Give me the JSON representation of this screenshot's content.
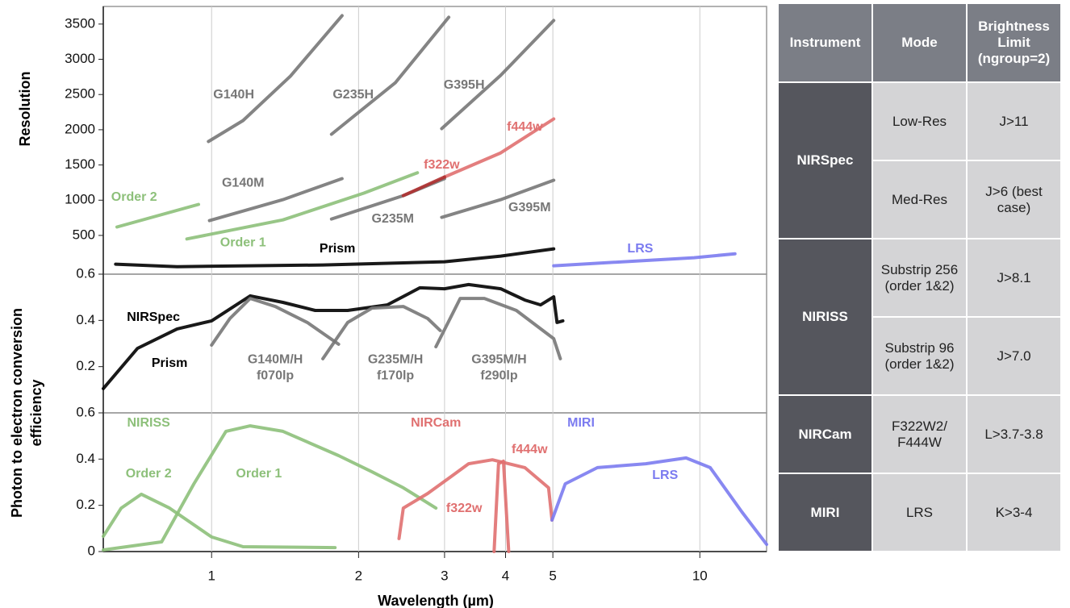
{
  "chart_data": [
    {
      "type": "line",
      "ylabel": "Resolution",
      "ylim": [
        -50,
        3750
      ],
      "yticks": [
        500,
        1000,
        1500,
        2000,
        2500,
        3000,
        3500
      ],
      "series": [
        {
          "color": "#8dc07a",
          "x": [
            0.64,
            0.94
          ],
          "values": [
            620,
            940
          ]
        },
        {
          "color": "#8dc07a",
          "x": [
            0.89,
            1.4,
            2.05,
            2.64
          ],
          "values": [
            450,
            720,
            1100,
            1390
          ]
        },
        {
          "color": "#777777",
          "x": [
            0.99,
            1.4,
            1.85
          ],
          "values": [
            710,
            1008,
            1306
          ]
        },
        {
          "color": "#777777",
          "x": [
            1.76,
            2.47,
            3.0
          ],
          "values": [
            733,
            1065,
            1306
          ]
        },
        {
          "color": "#777777",
          "x": [
            2.96,
            3.91,
            5.02
          ],
          "values": [
            756,
            1008,
            1283
          ]
        },
        {
          "color": "#777777",
          "x": [
            0.985,
            1.16,
            1.45,
            1.85
          ],
          "values": [
            1833,
            2130,
            2761,
            3620
          ]
        },
        {
          "color": "#777777",
          "x": [
            1.76,
            2.38,
            3.06
          ],
          "values": [
            1936,
            2669,
            3597
          ]
        },
        {
          "color": "#777777",
          "x": [
            2.96,
            3.91,
            5.02
          ],
          "values": [
            2016,
            2772,
            3551
          ]
        },
        {
          "color": "#e07070",
          "x": [
            3.0,
            3.91,
            5.02
          ],
          "values": [
            1329,
            1672,
            2153
          ]
        },
        {
          "color": "#b03030",
          "x": [
            2.47,
            3.0
          ],
          "values": [
            1065,
            1329
          ]
        },
        {
          "color": "#000000",
          "x": [
            0.636,
            0.85,
            1.69,
            3.0,
            3.91,
            5.02
          ],
          "values": [
            92,
            57,
            80,
            126,
            206,
            309
          ]
        },
        {
          "color": "#7b7bf0",
          "x": [
            5.02,
            9.73,
            11.8
          ],
          "values": [
            69,
            183,
            240
          ]
        }
      ],
      "annotations": [
        {
          "text": "G140H",
          "x": 1.11,
          "y": 2491,
          "color": "#777777"
        },
        {
          "text": "G235H",
          "x": 1.95,
          "y": 2491,
          "color": "#777777"
        },
        {
          "text": "G395H",
          "x": 3.29,
          "y": 2628,
          "color": "#777777"
        },
        {
          "text": "f444w",
          "x": 4.38,
          "y": 2033,
          "color": "#e07070"
        },
        {
          "text": "f322w",
          "x": 2.96,
          "y": 1495,
          "color": "#e07070"
        },
        {
          "text": "G140M",
          "x": 1.16,
          "y": 1243,
          "color": "#777777"
        },
        {
          "text": "Order 2",
          "x": 0.694,
          "y": 1037,
          "color": "#8dc07a"
        },
        {
          "text": "G235M",
          "x": 2.35,
          "y": 728,
          "color": "#777777"
        },
        {
          "text": "G395M",
          "x": 4.48,
          "y": 889,
          "color": "#777777"
        },
        {
          "text": "Order 1",
          "x": 1.16,
          "y": 396,
          "color": "#8dc07a"
        },
        {
          "text": "Prism",
          "x": 1.81,
          "y": 305,
          "color": "#000000"
        },
        {
          "text": "LRS",
          "x": 7.55,
          "y": 305,
          "color": "#7b7bf0"
        }
      ]
    },
    {
      "type": "line",
      "ylabel": [
        "Photon to electron conversion",
        "efficiency"
      ],
      "ylim": [
        0,
        0.6
      ],
      "yticks": [
        0.2,
        0.4,
        0.6
      ],
      "series": [
        {
          "color": "#000000",
          "x": [
            0.6,
            0.705,
            0.85,
            1.0,
            1.2,
            1.4,
            1.63,
            1.9,
            2.29,
            2.67,
            3.0,
            3.36,
            3.91,
            4.38,
            4.72,
            5.02,
            5.1,
            5.24
          ],
          "values": [
            0.105,
            0.279,
            0.363,
            0.398,
            0.506,
            0.478,
            0.443,
            0.443,
            0.467,
            0.541,
            0.537,
            0.555,
            0.537,
            0.488,
            0.467,
            0.502,
            0.391,
            0.398
          ]
        },
        {
          "color": "#777777",
          "x": [
            1.0,
            1.09,
            1.2,
            1.35,
            1.57,
            1.82
          ],
          "values": [
            0.293,
            0.408,
            0.495,
            0.46,
            0.391,
            0.297
          ]
        },
        {
          "color": "#777777",
          "x": [
            1.69,
            1.9,
            2.13,
            2.47,
            2.77,
            2.94
          ],
          "values": [
            0.234,
            0.391,
            0.453,
            0.46,
            0.408,
            0.356
          ]
        },
        {
          "color": "#777777",
          "x": [
            2.88,
            3.23,
            3.62,
            4.21,
            5.02,
            5.18
          ],
          "values": [
            0.286,
            0.495,
            0.495,
            0.443,
            0.321,
            0.234
          ]
        }
      ],
      "annotations": [
        {
          "text": "NIRSpec",
          "x": 0.76,
          "y": 0.412,
          "color": "#000000"
        },
        {
          "text": "Prism",
          "x": 0.82,
          "y": 0.213,
          "color": "#000000"
        },
        {
          "text": "G140M/H",
          "x": 1.35,
          "y": 0.23,
          "color": "#777777"
        },
        {
          "text": "f070lp",
          "x": 1.35,
          "y": 0.16,
          "color": "#777777"
        },
        {
          "text": "G235M/H",
          "x": 2.38,
          "y": 0.23,
          "color": "#777777"
        },
        {
          "text": "f170lp",
          "x": 2.38,
          "y": 0.16,
          "color": "#777777"
        },
        {
          "text": "G395M/H",
          "x": 3.88,
          "y": 0.23,
          "color": "#777777"
        },
        {
          "text": "f290lp",
          "x": 3.88,
          "y": 0.16,
          "color": "#777777"
        }
      ]
    },
    {
      "type": "line",
      "xlabel": "Wavelength (µm)",
      "xscale": "log",
      "xlim": [
        0.6,
        13.7
      ],
      "xticks": [
        1,
        2,
        3,
        4,
        5,
        10
      ],
      "grid": true,
      "ylim": [
        0,
        0.6
      ],
      "yticks": [
        0,
        0.2,
        0.4,
        0.6
      ],
      "series": [
        {
          "color": "#8dc07a",
          "x": [
            0.6,
            0.653,
            0.718,
            0.82,
            1.0,
            1.16,
            1.79
          ],
          "values": [
            0.066,
            0.188,
            0.248,
            0.188,
            0.063,
            0.021,
            0.017
          ]
        },
        {
          "color": "#8dc07a",
          "x": [
            0.6,
            0.79,
            0.92,
            1.07,
            1.2,
            1.4,
            1.82,
            2.13,
            2.47,
            2.88
          ],
          "values": [
            0.007,
            0.042,
            0.293,
            0.52,
            0.544,
            0.52,
            0.415,
            0.345,
            0.276,
            0.188
          ]
        },
        {
          "color": "#e07070",
          "x": [
            2.42,
            2.47,
            2.77,
            3.11,
            3.36,
            3.76,
            4.38,
            4.9,
            4.98
          ],
          "values": [
            0.056,
            0.188,
            0.251,
            0.328,
            0.38,
            0.397,
            0.363,
            0.276,
            0.136
          ]
        },
        {
          "color": "#e07070",
          "x": [
            3.79,
            3.87,
            3.96,
            4.06
          ],
          "values": [
            0,
            0.38,
            0.391,
            0
          ]
        },
        {
          "color": "#7b7bf0",
          "x": [
            4.98,
            5.3,
            6.17,
            7.75,
            9.37,
            10.5,
            12.2,
            13.7
          ],
          "values": [
            0.136,
            0.293,
            0.363,
            0.38,
            0.405,
            0.363,
            0.171,
            0.031
          ]
        }
      ],
      "annotations": [
        {
          "text": "NIRISS",
          "x": 0.743,
          "y": 0.555,
          "color": "#8dc07a"
        },
        {
          "text": "NIRCam",
          "x": 2.88,
          "y": 0.555,
          "color": "#e07070"
        },
        {
          "text": "MIRI",
          "x": 5.71,
          "y": 0.555,
          "color": "#7b7bf0"
        },
        {
          "text": "Order 2",
          "x": 0.743,
          "y": 0.335,
          "color": "#8dc07a"
        },
        {
          "text": "Order 1",
          "x": 1.25,
          "y": 0.335,
          "color": "#8dc07a"
        },
        {
          "text": "f444w",
          "x": 4.48,
          "y": 0.44,
          "color": "#e07070"
        },
        {
          "text": "f322w",
          "x": 3.29,
          "y": 0.185,
          "color": "#e07070"
        },
        {
          "text": "LRS",
          "x": 8.49,
          "y": 0.328,
          "color": "#7b7bf0"
        }
      ]
    }
  ],
  "table": {
    "header": [
      "Instrument",
      "Mode",
      "Brightness Limit (ngroup=2)"
    ],
    "rows": [
      {
        "instrument": "NIRSpec",
        "modes": [
          [
            "Low-Res",
            "J>11"
          ],
          [
            "Med-Res",
            "J>6 (best case)"
          ]
        ]
      },
      {
        "instrument": "NIRISS",
        "modes": [
          [
            "Substrip 256 (order 1&2)",
            "J>8.1"
          ],
          [
            "Substrip 96 (order 1&2)",
            "J>7.0"
          ]
        ]
      },
      {
        "instrument": "NIRCam",
        "modes": [
          [
            "F322W2/ F444W",
            "L>3.7-3.8"
          ]
        ]
      },
      {
        "instrument": "MIRI",
        "modes": [
          [
            "LRS",
            "K>3-4"
          ]
        ]
      }
    ]
  }
}
